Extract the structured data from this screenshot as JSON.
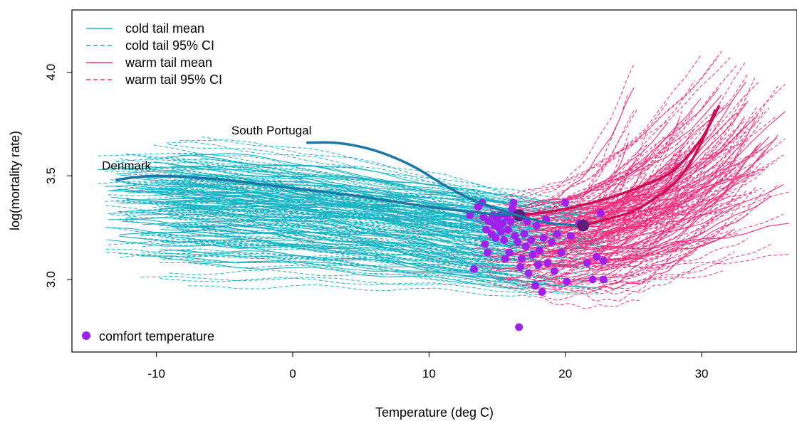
{
  "chart_data": {
    "type": "line",
    "title": "",
    "xlabel": "Temperature (deg C)",
    "ylabel": "log(mortality rate)",
    "xlim": [
      -16.2,
      37
    ],
    "ylim": [
      2.65,
      4.3
    ],
    "xticks": [
      -10,
      0,
      10,
      20,
      30
    ],
    "yticks": [
      3.0,
      3.5,
      4.0
    ],
    "grid": false,
    "legend": {
      "placement": "top-left",
      "entries": [
        {
          "label": "cold tail mean",
          "color": "#1ab4c4",
          "style": "solid"
        },
        {
          "label": "cold tail 95% CI",
          "color": "#1ab4c4",
          "style": "dashed"
        },
        {
          "label": "warm tail mean",
          "color": "#ee2f7f",
          "style": "solid"
        },
        {
          "label": "warm tail 95% CI",
          "color": "#ee2f7f",
          "style": "dashed"
        }
      ]
    },
    "legend_bottom": {
      "placement": "bottom-left",
      "label": "comfort temperature",
      "color": "#a020f0"
    },
    "colors": {
      "cold": "#1ab4c4",
      "warm": "#ee2f7f",
      "comfort": "#a020f0",
      "highlight_cold": "#1a78a8",
      "highlight_warm": "#cc0e54",
      "highlight_point": "#5e1f7a"
    },
    "annotations": [
      {
        "text": "Denmark",
        "x": -14.0,
        "y": 3.53
      },
      {
        "text": "South Portugal",
        "x": -4.5,
        "y": 3.7
      }
    ],
    "highlighted_series": [
      {
        "name": "Denmark",
        "cold_mean": {
          "x": [
            -13,
            -10,
            -5,
            0,
            5,
            10,
            14,
            16.5
          ],
          "y": [
            3.48,
            3.5,
            3.48,
            3.44,
            3.4,
            3.35,
            3.32,
            3.31
          ]
        },
        "warm_mean": {
          "x": [
            16.5,
            18,
            20,
            22,
            24,
            26,
            28,
            30,
            31.3
          ],
          "y": [
            3.31,
            3.32,
            3.34,
            3.37,
            3.41,
            3.46,
            3.53,
            3.68,
            3.84
          ]
        },
        "comfort_point": {
          "x": 16.6,
          "y": 3.31
        }
      },
      {
        "name": "South Portugal",
        "cold_mean": {
          "x": [
            1,
            3,
            5,
            7,
            9,
            11,
            13,
            15,
            17,
            19,
            21.3
          ],
          "y": [
            3.66,
            3.66,
            3.64,
            3.6,
            3.54,
            3.46,
            3.39,
            3.34,
            3.3,
            3.27,
            3.26
          ]
        },
        "warm_mean": {
          "x": [
            21.3,
            23,
            25,
            27,
            28.5,
            29.5,
            30.4,
            31
          ],
          "y": [
            3.26,
            3.29,
            3.33,
            3.41,
            3.5,
            3.6,
            3.72,
            3.82
          ]
        },
        "comfort_point": {
          "x": 21.3,
          "y": 3.26
        }
      }
    ],
    "comfort_points": [
      {
        "x": 13.0,
        "y": 3.31
      },
      {
        "x": 13.3,
        "y": 3.05
      },
      {
        "x": 13.6,
        "y": 3.35
      },
      {
        "x": 13.9,
        "y": 3.37
      },
      {
        "x": 14.0,
        "y": 3.3
      },
      {
        "x": 14.1,
        "y": 3.17
      },
      {
        "x": 14.2,
        "y": 3.24
      },
      {
        "x": 14.3,
        "y": 3.13
      },
      {
        "x": 14.4,
        "y": 3.28
      },
      {
        "x": 14.6,
        "y": 3.22
      },
      {
        "x": 14.7,
        "y": 3.31
      },
      {
        "x": 14.8,
        "y": 3.26
      },
      {
        "x": 14.9,
        "y": 3.2
      },
      {
        "x": 15.0,
        "y": 3.29
      },
      {
        "x": 15.1,
        "y": 3.25
      },
      {
        "x": 15.2,
        "y": 3.31
      },
      {
        "x": 15.3,
        "y": 3.23
      },
      {
        "x": 15.4,
        "y": 3.27
      },
      {
        "x": 15.5,
        "y": 3.19
      },
      {
        "x": 15.6,
        "y": 3.1
      },
      {
        "x": 15.7,
        "y": 3.3
      },
      {
        "x": 15.8,
        "y": 3.24
      },
      {
        "x": 15.9,
        "y": 3.13
      },
      {
        "x": 16.0,
        "y": 3.28
      },
      {
        "x": 16.1,
        "y": 3.34
      },
      {
        "x": 16.2,
        "y": 3.37
      },
      {
        "x": 16.3,
        "y": 3.21
      },
      {
        "x": 16.5,
        "y": 3.18
      },
      {
        "x": 16.6,
        "y": 2.77
      },
      {
        "x": 16.7,
        "y": 3.06
      },
      {
        "x": 16.8,
        "y": 3.1
      },
      {
        "x": 17.0,
        "y": 3.22
      },
      {
        "x": 17.1,
        "y": 3.16
      },
      {
        "x": 17.2,
        "y": 3.28
      },
      {
        "x": 17.3,
        "y": 3.03
      },
      {
        "x": 17.5,
        "y": 3.19
      },
      {
        "x": 17.6,
        "y": 3.12
      },
      {
        "x": 17.8,
        "y": 2.97
      },
      {
        "x": 17.9,
        "y": 3.26
      },
      {
        "x": 18.0,
        "y": 3.07
      },
      {
        "x": 18.1,
        "y": 3.14
      },
      {
        "x": 18.3,
        "y": 2.94
      },
      {
        "x": 18.4,
        "y": 3.2
      },
      {
        "x": 18.6,
        "y": 3.29
      },
      {
        "x": 18.7,
        "y": 3.08
      },
      {
        "x": 19.0,
        "y": 3.18
      },
      {
        "x": 19.2,
        "y": 3.04
      },
      {
        "x": 19.4,
        "y": 3.22
      },
      {
        "x": 19.7,
        "y": 3.13
      },
      {
        "x": 20.0,
        "y": 3.37
      },
      {
        "x": 20.1,
        "y": 2.99
      },
      {
        "x": 20.4,
        "y": 3.21
      },
      {
        "x": 21.0,
        "y": 3.27
      },
      {
        "x": 21.6,
        "y": 3.08
      },
      {
        "x": 22.0,
        "y": 3.0
      },
      {
        "x": 22.3,
        "y": 3.11
      },
      {
        "x": 22.6,
        "y": 3.32
      },
      {
        "x": 22.8,
        "y": 3.09
      },
      {
        "x": 22.8,
        "y": 3.0
      }
    ],
    "regions": {
      "count": 60,
      "cold_start_x": [
        -14.5,
        -6.5
      ],
      "join_x": [
        13.0,
        23.0
      ],
      "warm_end_x": [
        24.5,
        36.5
      ]
    }
  }
}
